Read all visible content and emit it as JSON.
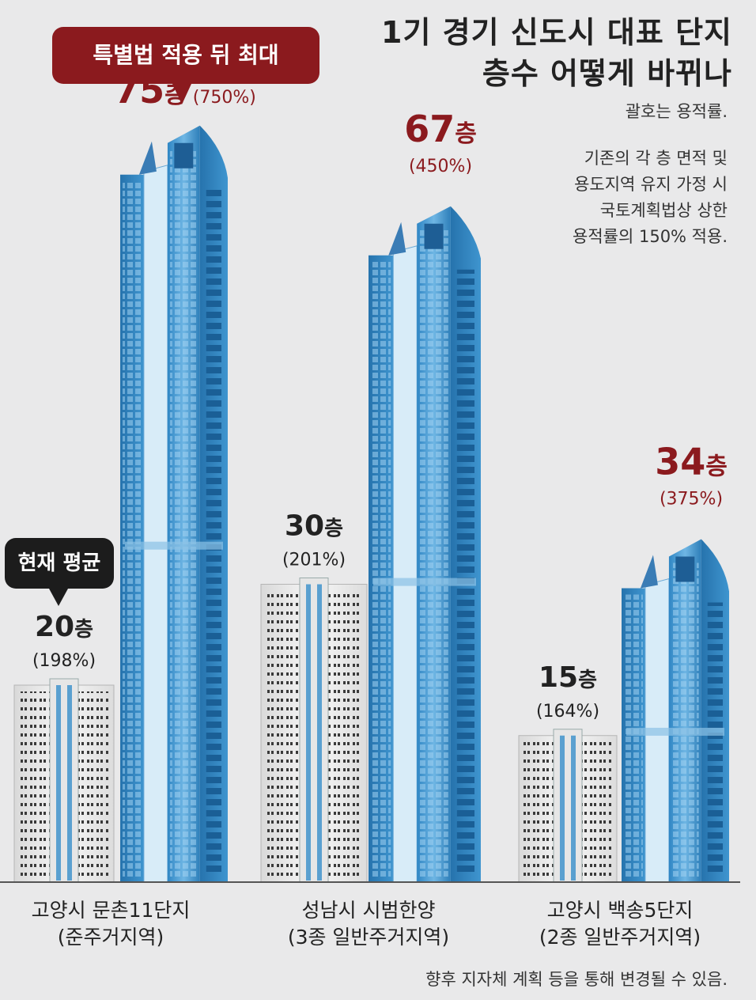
{
  "title": [
    "1기 경기 신도시 대표 단지",
    "층수 어떻게 바뀌나"
  ],
  "notes": {
    "paren_note": "괄호는 용적률.",
    "assumption": [
      "기존의 각 층 면적 및",
      "용도지역 유지 가정 시",
      "국토계획법상 상한",
      "용적률의 150% 적용."
    ]
  },
  "footnote": "향후 지자체 계획 등을 통해 변경될 수 있음.",
  "callouts": {
    "current": "현재 평균",
    "max": "특별법 적용 뒤 최대"
  },
  "colors": {
    "accent_red": "#8b1a1e",
    "bubble_dark": "#1c1c1c",
    "tower_blue": "#3d8fcb",
    "apartment_gray": "#f3f3f3"
  },
  "chart_data": {
    "type": "bar",
    "categories": [
      [
        "고양시 문촌11단지",
        "(준주거지역)"
      ],
      [
        "성남시 시범한양",
        "(3종 일반주거지역)"
      ],
      [
        "고양시 백송5단지",
        "(2종 일반주거지역)"
      ]
    ],
    "unit": "층",
    "series": [
      {
        "name": "현재 평균",
        "values": [
          20,
          30,
          15
        ],
        "ratios": [
          "198%",
          "201%",
          "164%"
        ]
      },
      {
        "name": "특별법 적용 뒤 최대",
        "values": [
          75,
          67,
          34
        ],
        "ratios": [
          "750%",
          "450%",
          "375%"
        ]
      }
    ]
  }
}
